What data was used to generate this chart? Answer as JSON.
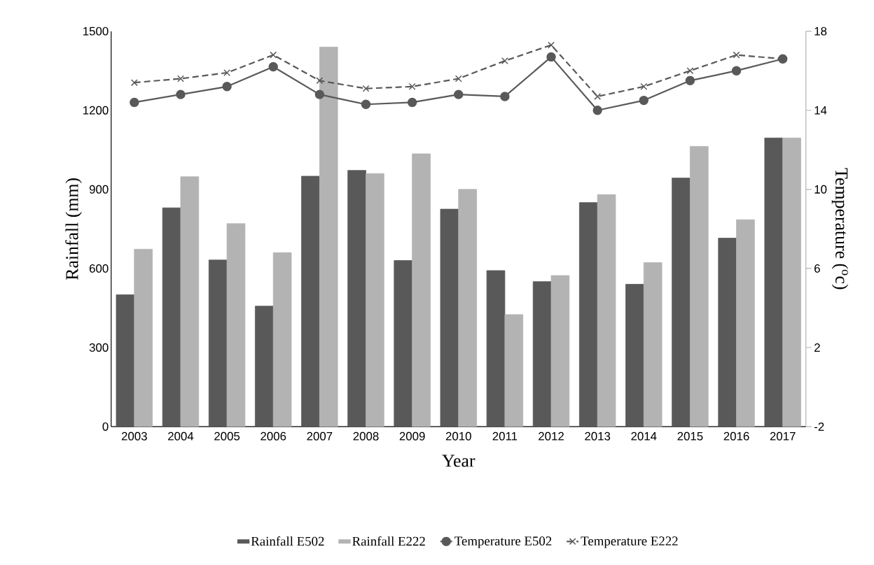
{
  "chart_data": {
    "type": "bar",
    "xlabel": "Year",
    "ylabel": "Rainfall (mm)",
    "y2label": "Temperature ($^{o}$c)",
    "categories": [
      "2003",
      "2004",
      "2005",
      "2006",
      "2007",
      "2008",
      "2009",
      "2010",
      "2011",
      "2012",
      "2013",
      "2014",
      "2015",
      "2016",
      "2017"
    ],
    "series": [
      {
        "name": "Rainfall E502",
        "color": "#595959",
        "values": [
          500,
          830,
          632,
          457,
          950,
          972,
          630,
          825,
          592,
          550,
          850,
          540,
          943,
          715,
          1095
        ]
      },
      {
        "name": "Rainfall E222",
        "color": "#b3b3b3",
        "values": [
          673,
          948,
          770,
          660,
          1440,
          960,
          1035,
          900,
          425,
          573,
          880,
          622,
          1063,
          785,
          1095
        ]
      },
      {
        "name": "Temperature E502",
        "type": "line",
        "axis": "y2",
        "color": "#595959",
        "marker": "circle",
        "line_style": "solid",
        "values": [
          14.4,
          14.8,
          15.2,
          16.2,
          14.8,
          14.3,
          14.4,
          14.8,
          14.7,
          16.7,
          14.0,
          14.5,
          15.5,
          16.0,
          16.6
        ]
      },
      {
        "name": "Temperature E222",
        "type": "line",
        "axis": "y2",
        "color": "#595959",
        "marker": "cross",
        "line_style": "dashed",
        "values": [
          15.4,
          15.6,
          15.9,
          16.8,
          15.5,
          15.1,
          15.2,
          15.6,
          16.5,
          17.3,
          14.7,
          15.2,
          16.0,
          16.8,
          16.6
        ]
      }
    ],
    "ylim": [
      0,
      1500
    ],
    "yticks": [
      0,
      300,
      600,
      900,
      1200,
      1500
    ],
    "y2lim": [
      -2,
      18
    ],
    "y2ticks": [
      -2,
      2,
      6,
      10,
      14,
      18
    ],
    "grid": false,
    "legend": "bottom"
  }
}
